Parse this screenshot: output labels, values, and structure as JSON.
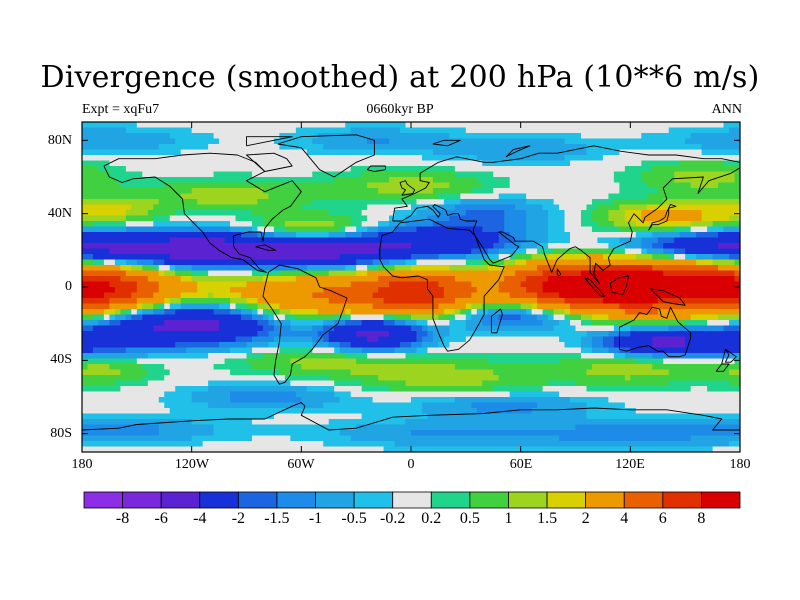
{
  "title": "Divergence (smoothed) at 200 hPa (10**6 m/s)",
  "subtitle_left": "Expt = xqFu7",
  "subtitle_center": "0660kyr BP",
  "subtitle_right": "ANN",
  "map": {
    "projection": "cylindrical-equidistant",
    "lon_range": [
      -180,
      180
    ],
    "lat_range": [
      -90,
      90
    ],
    "lat_ticks": [
      "80N",
      "40N",
      "0",
      "40S",
      "80S"
    ],
    "lon_ticks": [
      "180",
      "120W",
      "60W",
      "0",
      "60E",
      "120E",
      "180"
    ]
  },
  "colorbar": {
    "labels": [
      "-8",
      "-6",
      "-4",
      "-2",
      "-1.5",
      "-1",
      "-0.5",
      "-0.2",
      "0.2",
      "0.5",
      "1",
      "1.5",
      "2",
      "4",
      "6",
      "8"
    ],
    "colors": [
      "#8c2ee6",
      "#7a28dc",
      "#5a22d0",
      "#1830d8",
      "#1c64e0",
      "#1c8ce8",
      "#20a4e4",
      "#20c0e8",
      "#e6e6e6",
      "#20d48c",
      "#40d040",
      "#9cd420",
      "#d8d000",
      "#ec9a00",
      "#e86000",
      "#e03000",
      "#d80000"
    ]
  },
  "colors": {
    "land_outline": "#000000",
    "neutral_fill": "#e6e6e6"
  }
}
